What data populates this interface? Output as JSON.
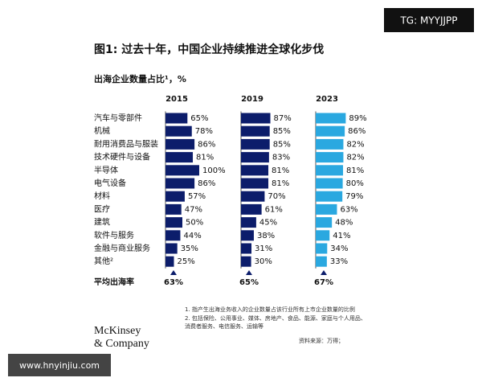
{
  "watermark_top": "TG: MYYJJPP",
  "watermark_bottom": "www.hnyinjiu.com",
  "logo": [
    "McKinsey",
    "& Company"
  ],
  "footnotes": [
    "1.  指产生出海业务收入的企业数量占该行业所有上市企业数量的比例",
    "2.  包括保险、公用事业、媒体、房地产、食品、能源、家庭与个人用品、",
    "     消费者服务、电信服务、运输等",
    "资料来源：万得；"
  ],
  "chart_data": {
    "type": "bar",
    "orientation": "horizontal",
    "title": "图1: 过去十年，中国企业持续推进全球化步伐",
    "subtitle": "出海企业数量占比¹，%",
    "categories": [
      "汽车与零部件",
      "机械",
      "耐用消费品与服装",
      "技术硬件与设备",
      "半导体",
      "电气设备",
      "材料",
      "医疗",
      "建筑",
      "软件与服务",
      "金融与商业服务",
      "其他²"
    ],
    "average_name": "平均出海率",
    "series": [
      {
        "name": "2015",
        "color": "#0c1d6b",
        "values": [
          65,
          78,
          86,
          81,
          100,
          86,
          57,
          47,
          50,
          44,
          35,
          25
        ],
        "value_labels": [
          "65%",
          "78%",
          "86%",
          "81%",
          "100%",
          "86%",
          "57%",
          "47%",
          "50%",
          "44%",
          "35%",
          "25%"
        ],
        "average": 63,
        "average_label": "63%"
      },
      {
        "name": "2019",
        "color": "#0c1d6b",
        "values": [
          87,
          85,
          85,
          83,
          81,
          81,
          70,
          61,
          45,
          38,
          31,
          30
        ],
        "value_labels": [
          "87%",
          "85%",
          "85%",
          "83%",
          "81%",
          "81%",
          "70%",
          "61%",
          "45%",
          "38%",
          "31%",
          "30%"
        ],
        "average": 65,
        "average_label": "65%"
      },
      {
        "name": "2023",
        "color": "#2aa8e0",
        "values": [
          89,
          86,
          82,
          82,
          81,
          80,
          79,
          63,
          48,
          41,
          34,
          33
        ],
        "value_labels": [
          "89%",
          "86%",
          "82%",
          "82%",
          "81%",
          "80%",
          "79%",
          "63%",
          "48%",
          "41%",
          "34%",
          "33%"
        ],
        "average": 67,
        "average_label": "67%"
      }
    ]
  }
}
